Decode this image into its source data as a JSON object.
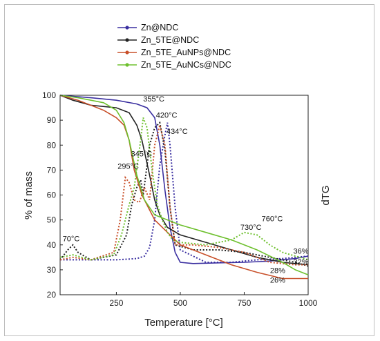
{
  "chart_data": {
    "type": "line",
    "xlabel": "Temperature [°C]",
    "ylabel": "% of mass",
    "ylabel_right": "dTG",
    "xlim": [
      30,
      1000
    ],
    "ylim": [
      20,
      100
    ],
    "xticks": [
      "250",
      "500",
      "750",
      "1000"
    ],
    "yticks": [
      "20",
      "30",
      "40",
      "50",
      "60",
      "70",
      "80",
      "90",
      "100"
    ],
    "series": [
      {
        "name": "Zn@NDC",
        "color": "#3a2fa0",
        "tg": {
          "x": [
            30,
            150,
            250,
            330,
            370,
            400,
            420,
            440,
            460,
            480,
            500,
            550,
            650,
            750,
            850,
            950,
            1000
          ],
          "y": [
            100,
            99,
            98,
            96.5,
            95,
            91,
            80,
            62,
            47,
            37,
            33,
            32.5,
            32.8,
            33,
            33.5,
            34.5,
            35.5
          ]
        },
        "dtg": {
          "x": [
            30,
            150,
            250,
            330,
            360,
            380,
            400,
            420,
            440,
            450,
            460,
            480,
            500,
            600,
            700,
            800,
            900,
            950,
            1000
          ],
          "y": [
            34,
            34,
            34,
            34.5,
            35.5,
            39,
            50,
            72,
            84,
            89,
            80,
            55,
            38,
            33,
            33,
            34,
            34.5,
            35,
            35.5
          ]
        }
      },
      {
        "name": "Zn_5TE@NDC",
        "color": "#222222",
        "tg": {
          "x": [
            30,
            80,
            150,
            250,
            300,
            330,
            350,
            380,
            400,
            420,
            450,
            500,
            600,
            700,
            800,
            900,
            1000
          ],
          "y": [
            100,
            98,
            96,
            95,
            93,
            88,
            82,
            68,
            58,
            52,
            47,
            44,
            41,
            38,
            35,
            33,
            32
          ]
        },
        "dtg": {
          "x": [
            30,
            60,
            80,
            100,
            150,
            250,
            290,
            310,
            330,
            345,
            355,
            380,
            400,
            420,
            440,
            460,
            480,
            550,
            650,
            750,
            850,
            950,
            1000
          ],
          "y": [
            34,
            38,
            40,
            37,
            34,
            36,
            44,
            56,
            63,
            66,
            60,
            80,
            87,
            89,
            78,
            55,
            40,
            38,
            38,
            37,
            35,
            33,
            31.5
          ]
        }
      },
      {
        "name": "Zn_5TE_AuNPs@NDC",
        "color": "#c8502a",
        "tg": {
          "x": [
            30,
            100,
            150,
            200,
            250,
            280,
            300,
            320,
            350,
            400,
            450,
            500,
            600,
            700,
            800,
            900,
            1000
          ],
          "y": [
            100,
            98,
            96,
            94,
            91,
            88,
            82,
            70,
            60,
            50,
            45,
            40,
            36,
            32,
            29,
            26.5,
            26.5
          ]
        },
        "dtg": {
          "x": [
            30,
            80,
            150,
            240,
            265,
            285,
            300,
            320,
            340,
            360,
            380,
            400,
            420,
            440,
            460,
            480,
            550,
            650,
            700,
            750,
            850,
            950,
            1000
          ],
          "y": [
            34,
            35,
            34,
            37,
            50,
            67,
            65,
            58,
            57,
            63,
            58,
            80,
            88,
            80,
            55,
            40,
            40,
            39,
            38,
            37,
            33,
            32,
            32
          ]
        }
      },
      {
        "name": "Zn_5TE_AuNCs@NDC",
        "color": "#6ec02e",
        "tg": {
          "x": [
            30,
            100,
            200,
            250,
            280,
            300,
            330,
            360,
            400,
            450,
            500,
            600,
            700,
            800,
            900,
            950,
            1000
          ],
          "y": [
            100,
            99,
            97,
            94,
            89,
            82,
            68,
            58,
            52,
            50,
            48,
            45,
            42,
            38,
            33,
            30,
            28
          ]
        },
        "dtg": {
          "x": [
            30,
            80,
            150,
            240,
            270,
            300,
            320,
            345,
            355,
            370,
            390,
            410,
            430,
            450,
            470,
            500,
            600,
            700,
            750,
            800,
            850,
            900,
            1000
          ],
          "y": [
            35,
            36,
            34,
            36,
            44,
            56,
            63,
            82,
            91,
            87,
            70,
            56,
            50,
            45,
            42,
            41,
            40,
            42,
            45,
            44,
            40,
            37,
            34
          ]
        }
      }
    ],
    "annotations": [
      {
        "text": "70°C",
        "x": 40,
        "y": 41.5
      },
      {
        "text": "295°C",
        "x": 255,
        "y": 70.5
      },
      {
        "text": "345°C",
        "x": 307,
        "y": 75.5
      },
      {
        "text": "355°C",
        "x": 355,
        "y": 97.5
      },
      {
        "text": "420°C",
        "x": 405,
        "y": 91
      },
      {
        "text": "434°C",
        "x": 446,
        "y": 84.5
      },
      {
        "text": "730°C",
        "x": 735,
        "y": 46
      },
      {
        "text": "760°C",
        "x": 818,
        "y": 49.5
      },
      {
        "text": "36%",
        "x": 942,
        "y": 36.5,
        "color": "#3a2fa0"
      },
      {
        "text": "32%",
        "x": 942,
        "y": 32.2,
        "color": "#222222"
      },
      {
        "text": "28%",
        "x": 851,
        "y": 28.7,
        "color": "#6ec02e"
      },
      {
        "text": "26%",
        "x": 851,
        "y": 24.8,
        "color": "#c8502a"
      }
    ],
    "grid": false,
    "legend": "top-center"
  }
}
